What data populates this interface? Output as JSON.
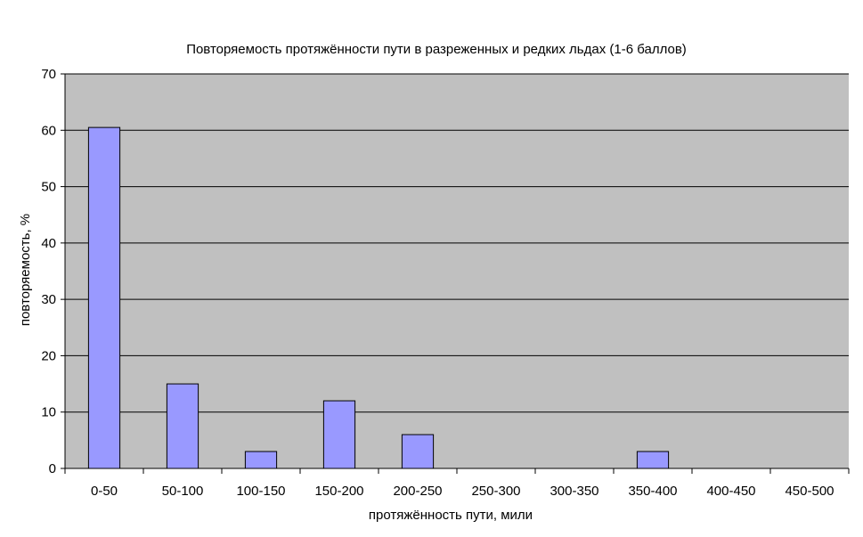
{
  "chart_data": {
    "type": "bar",
    "title": "Повторяемость протяжённости пути в разреженных и редких льдах (1-6 баллов)",
    "xlabel": "протяжённость пути, мили",
    "ylabel": "повторяемость, %",
    "categories": [
      "0-50",
      "50-100",
      "100-150",
      "150-200",
      "200-250",
      "250-300",
      "300-350",
      "350-400",
      "400-450",
      "450-500"
    ],
    "values": [
      60.5,
      15,
      3,
      12,
      6,
      0,
      0,
      3,
      0,
      0
    ],
    "ylim": [
      0,
      70
    ],
    "yticks": [
      0,
      10,
      20,
      30,
      40,
      50,
      60,
      70
    ],
    "grid": true,
    "legend": "none",
    "colors": {
      "plot_background": "#c0c0c0",
      "bar_fill": "#9999ff",
      "bar_stroke": "#000000",
      "gridline": "#000000"
    }
  }
}
